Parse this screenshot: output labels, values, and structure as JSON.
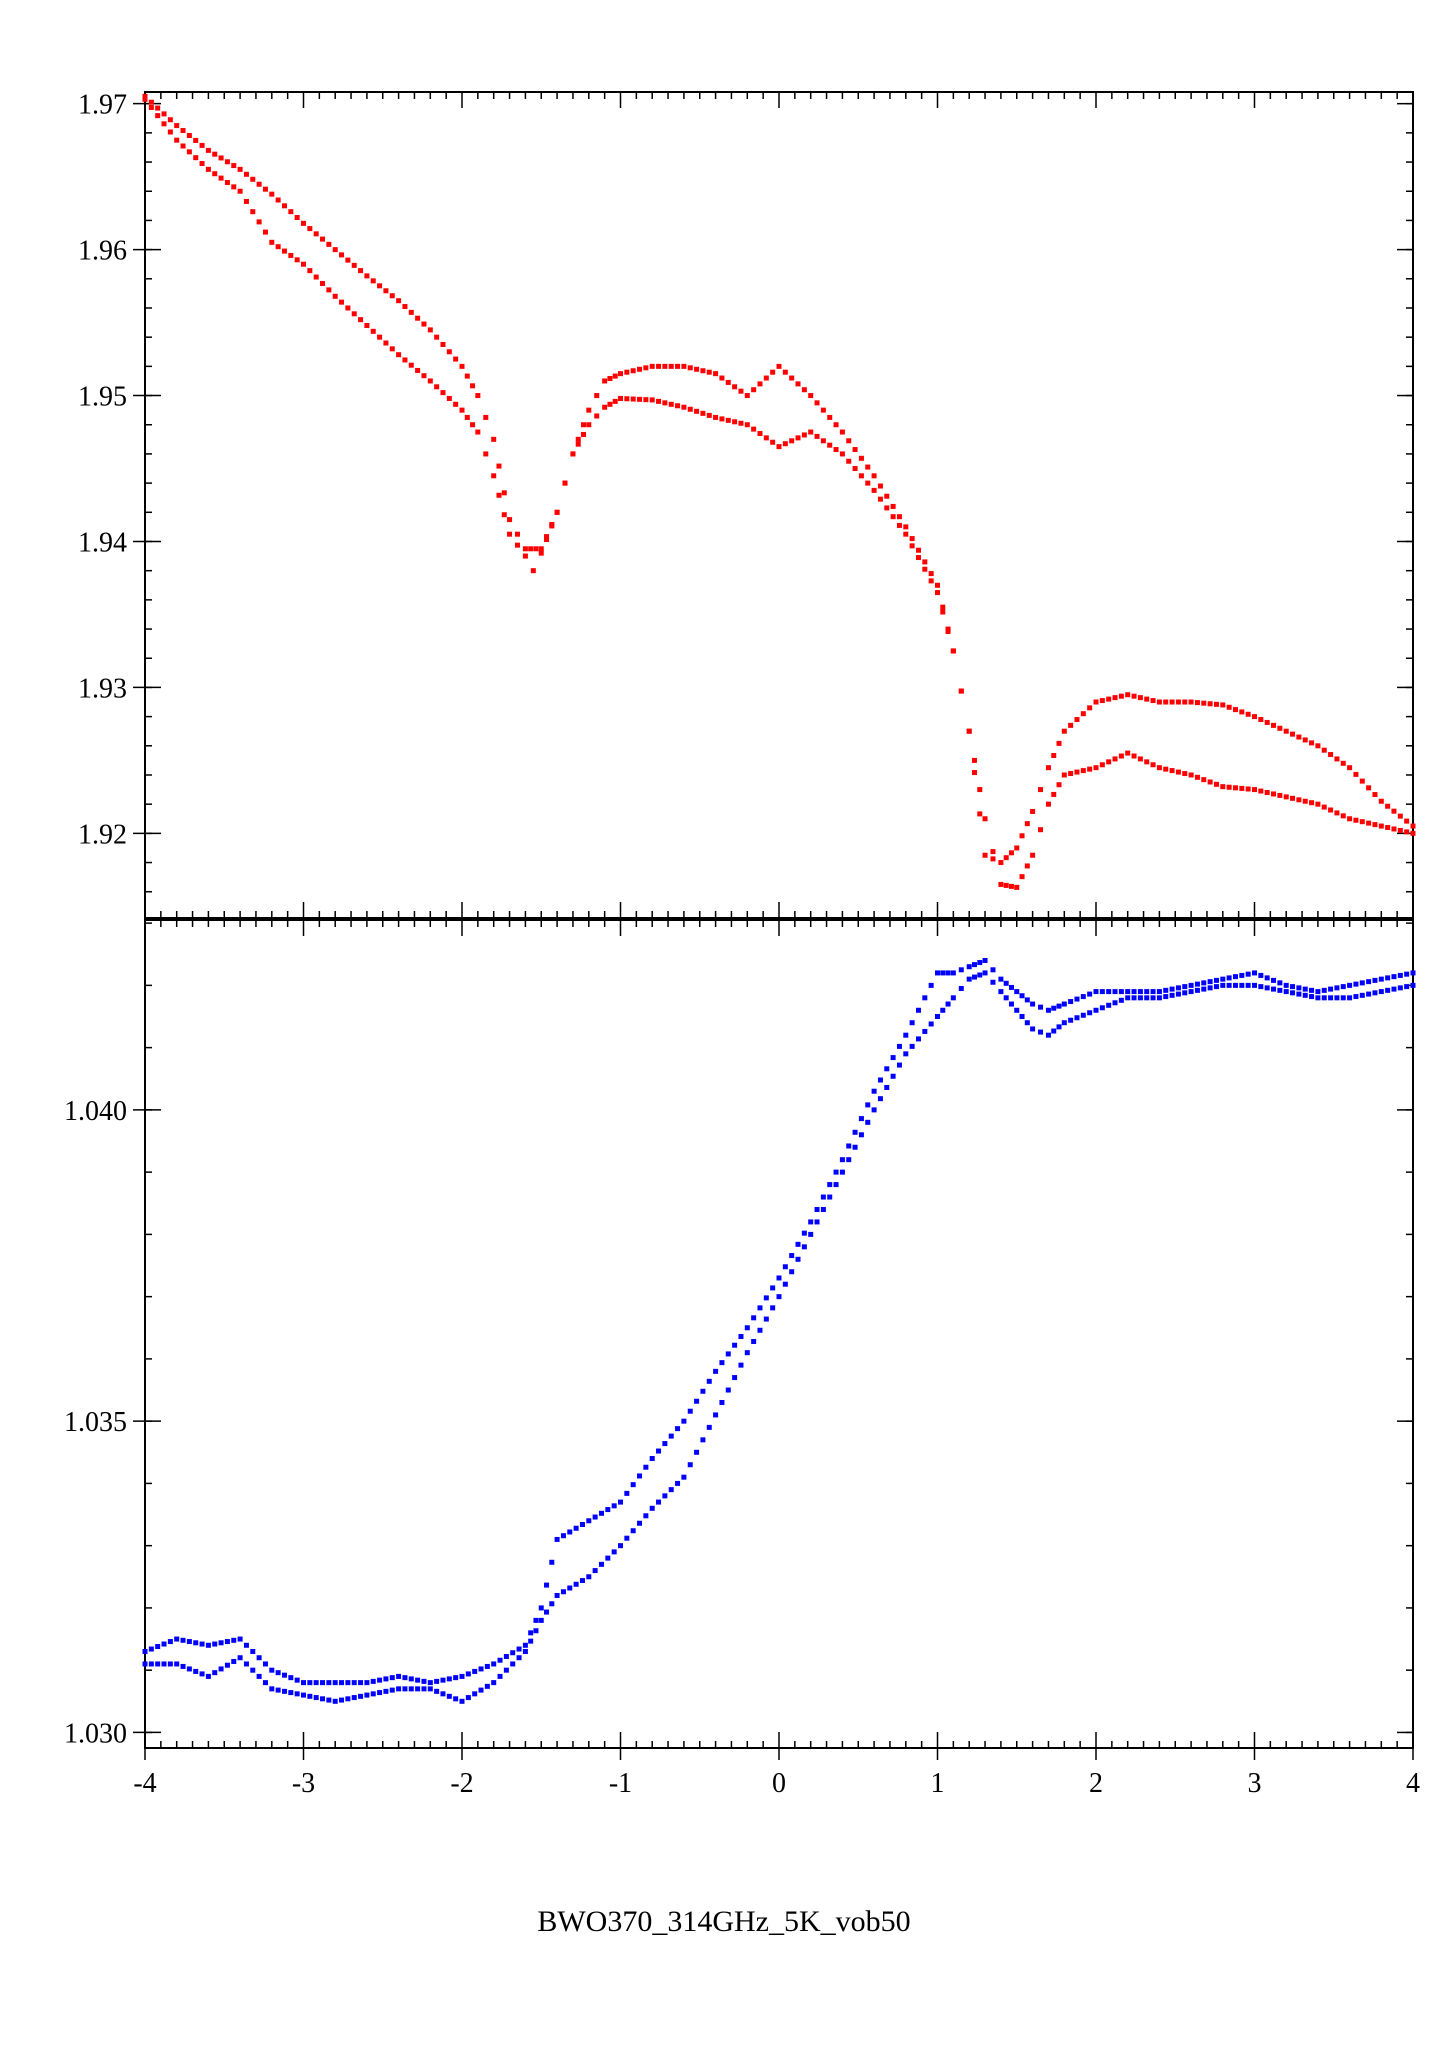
{
  "caption": "BWO370_314GHz_5K_vob50",
  "colors": {
    "top_series": "#ff0000",
    "bottom_series": "#0000ff",
    "axes": "#000000"
  },
  "chart_data": [
    {
      "type": "scatter",
      "panel": "top",
      "xlim": [
        -4,
        4
      ],
      "ylim": [
        1.9142,
        1.9708
      ],
      "yticks": [
        1.92,
        1.93,
        1.94,
        1.95,
        1.96,
        1.97
      ],
      "ytick_labels": [
        "1.92",
        "1.93",
        "1.94",
        "1.95",
        "1.96",
        "1.97"
      ],
      "color": "#ff0000",
      "series": [
        {
          "x": [
            -4.0,
            -3.8,
            -3.6,
            -3.4,
            -3.2,
            -3.0,
            -2.8,
            -2.6,
            -2.4,
            -2.2,
            -2.0,
            -1.9,
            -1.8,
            -1.7,
            -1.6,
            -1.55,
            -1.5,
            -1.4,
            -1.3,
            -1.2,
            -1.1,
            -1.0,
            -0.8,
            -0.6,
            -0.4,
            -0.2,
            0.0,
            0.2,
            0.4,
            0.6,
            0.8,
            1.0,
            1.1,
            1.2,
            1.3,
            1.4,
            1.5,
            1.6,
            1.7,
            1.8,
            2.0,
            2.2,
            2.4,
            2.6,
            2.8,
            3.0,
            3.2,
            3.4,
            3.6,
            3.8,
            4.0
          ],
          "y": [
            1.9703,
            1.9675,
            1.9655,
            1.964,
            1.9605,
            1.959,
            1.9568,
            1.9548,
            1.9528,
            1.951,
            1.949,
            1.9475,
            1.9445,
            1.9405,
            1.939,
            1.938,
            1.9392,
            1.942,
            1.946,
            1.948,
            1.9492,
            1.9498,
            1.9497,
            1.9492,
            1.9485,
            1.948,
            1.9465,
            1.9475,
            1.946,
            1.9435,
            1.9405,
            1.9365,
            1.9325,
            1.927,
            1.921,
            1.9165,
            1.9163,
            1.9185,
            1.922,
            1.924,
            1.9245,
            1.9255,
            1.9245,
            1.924,
            1.9232,
            1.923,
            1.9225,
            1.922,
            1.921,
            1.9205,
            1.92
          ]
        },
        {
          "x": [
            -4.0,
            -3.8,
            -3.6,
            -3.4,
            -3.2,
            -3.0,
            -2.8,
            -2.6,
            -2.4,
            -2.2,
            -2.0,
            -1.9,
            -1.8,
            -1.7,
            -1.6,
            -1.5,
            -1.4,
            -1.3,
            -1.2,
            -1.1,
            -1.0,
            -0.8,
            -0.6,
            -0.4,
            -0.2,
            0.0,
            0.2,
            0.4,
            0.6,
            0.8,
            1.0,
            1.1,
            1.2,
            1.3,
            1.4,
            1.5,
            1.6,
            1.7,
            1.8,
            2.0,
            2.2,
            2.4,
            2.6,
            2.8,
            3.0,
            3.2,
            3.4,
            3.6,
            3.8,
            4.0
          ],
          "y": [
            1.9705,
            1.9685,
            1.9668,
            1.9655,
            1.9638,
            1.9618,
            1.96,
            1.9582,
            1.9565,
            1.9545,
            1.952,
            1.95,
            1.947,
            1.9415,
            1.9395,
            1.9395,
            1.942,
            1.946,
            1.949,
            1.951,
            1.9515,
            1.952,
            1.952,
            1.9515,
            1.95,
            1.952,
            1.95,
            1.9475,
            1.9445,
            1.941,
            1.937,
            1.9325,
            1.927,
            1.9185,
            1.918,
            1.919,
            1.9215,
            1.9245,
            1.927,
            1.929,
            1.9295,
            1.929,
            1.929,
            1.9288,
            1.928,
            1.927,
            1.926,
            1.9245,
            1.9222,
            1.9205
          ]
        }
      ]
    },
    {
      "type": "scatter",
      "panel": "bottom",
      "xlim": [
        -4,
        4
      ],
      "ylim": [
        1.02975,
        1.04305
      ],
      "yticks": [
        1.03,
        1.035,
        1.04
      ],
      "ytick_labels": [
        "1.030",
        "1.035",
        "1.040"
      ],
      "xticks": [
        -4,
        -3,
        -2,
        -1,
        0,
        1,
        2,
        3,
        4
      ],
      "xtick_labels": [
        "-4",
        "-3",
        "-2",
        "-1",
        "0",
        "1",
        "2",
        "3",
        "4"
      ],
      "color": "#0000ff",
      "series": [
        {
          "x": [
            -4.0,
            -3.8,
            -3.6,
            -3.4,
            -3.2,
            -3.0,
            -2.8,
            -2.6,
            -2.4,
            -2.2,
            -2.0,
            -1.8,
            -1.6,
            -1.5,
            -1.4,
            -1.2,
            -1.0,
            -0.8,
            -0.6,
            -0.4,
            -0.2,
            0.0,
            0.2,
            0.4,
            0.6,
            0.8,
            1.0,
            1.1,
            1.2,
            1.3,
            1.4,
            1.5,
            1.6,
            1.7,
            1.8,
            2.0,
            2.2,
            2.4,
            2.6,
            2.8,
            3.0,
            3.2,
            3.4,
            3.6,
            3.8,
            4.0
          ],
          "y": [
            1.0311,
            1.0311,
            1.0309,
            1.0312,
            1.0307,
            1.0306,
            1.0305,
            1.0306,
            1.0307,
            1.0307,
            1.0305,
            1.0308,
            1.0313,
            1.0318,
            1.0322,
            1.0325,
            1.033,
            1.0336,
            1.0341,
            1.0351,
            1.0361,
            1.037,
            1.038,
            1.039,
            1.04,
            1.0409,
            1.0415,
            1.0418,
            1.0421,
            1.0422,
            1.0419,
            1.0416,
            1.0413,
            1.0412,
            1.0414,
            1.0416,
            1.0418,
            1.0418,
            1.0419,
            1.042,
            1.042,
            1.0419,
            1.0418,
            1.0418,
            1.0419,
            1.042
          ]
        },
        {
          "x": [
            -4.0,
            -3.8,
            -3.6,
            -3.4,
            -3.2,
            -3.0,
            -2.8,
            -2.6,
            -2.4,
            -2.2,
            -2.0,
            -1.8,
            -1.6,
            -1.5,
            -1.4,
            -1.2,
            -1.0,
            -0.8,
            -0.6,
            -0.4,
            -0.2,
            0.0,
            0.2,
            0.4,
            0.6,
            0.8,
            1.0,
            1.1,
            1.2,
            1.3,
            1.4,
            1.5,
            1.6,
            1.7,
            1.8,
            2.0,
            2.2,
            2.4,
            2.6,
            2.8,
            3.0,
            3.2,
            3.4,
            3.6,
            3.8,
            4.0
          ],
          "y": [
            1.0313,
            1.0315,
            1.0314,
            1.0315,
            1.031,
            1.0308,
            1.0308,
            1.0308,
            1.0309,
            1.0308,
            1.0309,
            1.0311,
            1.0314,
            1.032,
            1.0331,
            1.0334,
            1.0337,
            1.0344,
            1.035,
            1.0358,
            1.0365,
            1.0373,
            1.0382,
            1.0392,
            1.0403,
            1.0412,
            1.0422,
            1.0422,
            1.0423,
            1.0424,
            1.0421,
            1.0419,
            1.0417,
            1.0416,
            1.0417,
            1.0419,
            1.0419,
            1.0419,
            1.042,
            1.0421,
            1.0422,
            1.042,
            1.0419,
            1.042,
            1.0421,
            1.0422
          ]
        }
      ]
    }
  ]
}
